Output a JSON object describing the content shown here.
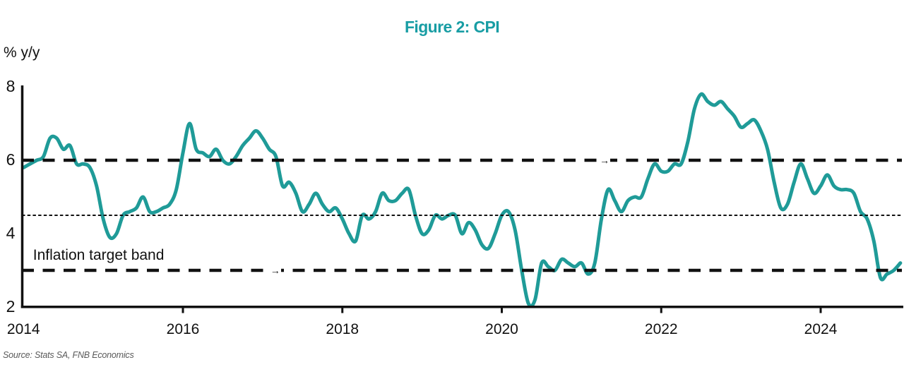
{
  "title": "Figure 2: CPI",
  "y_axis_unit_label": "% y/y",
  "annotation": "Inflation target band",
  "source_note": "Source: Stats SA, FNB Economics",
  "colors": {
    "line": "#1f9b98",
    "title": "#189da4",
    "axis": "#111111",
    "text": "#111111",
    "source_text": "#5a5a5a"
  },
  "chart_data": {
    "type": "line",
    "title": "Figure 2: CPI",
    "xlabel": "",
    "ylabel": "% y/y",
    "ylim": [
      2,
      8
    ],
    "yticks": [
      8,
      6,
      4,
      2
    ],
    "xticks": [
      2014,
      2016,
      2018,
      2020,
      2022,
      2024
    ],
    "x_range_years": [
      2014.0,
      2025.08
    ],
    "grid": false,
    "legend": false,
    "series": [
      {
        "name": "CPI",
        "unit": "% y/y",
        "frequency": "monthly",
        "start": "2014-01",
        "end": "2025-01",
        "values": [
          5.8,
          5.9,
          6.0,
          6.1,
          6.6,
          6.6,
          6.3,
          6.4,
          5.9,
          5.9,
          5.8,
          5.3,
          4.4,
          3.9,
          4.0,
          4.5,
          4.6,
          4.7,
          5.0,
          4.6,
          4.6,
          4.7,
          4.8,
          5.2,
          6.2,
          7.0,
          6.3,
          6.2,
          6.1,
          6.3,
          6.0,
          5.9,
          6.1,
          6.4,
          6.6,
          6.8,
          6.6,
          6.3,
          6.1,
          5.3,
          5.4,
          5.1,
          4.6,
          4.8,
          5.1,
          4.8,
          4.6,
          4.7,
          4.4,
          4.0,
          3.8,
          4.5,
          4.4,
          4.6,
          5.1,
          4.9,
          4.9,
          5.1,
          5.2,
          4.5,
          4.0,
          4.1,
          4.5,
          4.4,
          4.5,
          4.5,
          4.0,
          4.3,
          4.1,
          3.7,
          3.6,
          4.0,
          4.5,
          4.6,
          4.1,
          3.0,
          2.1,
          2.2,
          3.2,
          3.1,
          3.0,
          3.3,
          3.2,
          3.1,
          3.2,
          2.9,
          3.2,
          4.4,
          5.2,
          4.9,
          4.6,
          4.9,
          5.0,
          5.0,
          5.5,
          5.9,
          5.7,
          5.7,
          5.9,
          5.9,
          6.5,
          7.4,
          7.8,
          7.6,
          7.5,
          7.6,
          7.4,
          7.2,
          6.9,
          7.0,
          7.1,
          6.8,
          6.3,
          5.4,
          4.7,
          4.8,
          5.4,
          5.9,
          5.5,
          5.1,
          5.3,
          5.6,
          5.3,
          5.2,
          5.2,
          5.1,
          4.6,
          4.4,
          3.8,
          2.8,
          2.9,
          3.0,
          3.2
        ]
      }
    ],
    "reference_lines": [
      {
        "value": 6,
        "style": "dashed",
        "role": "inflation-target-band-upper"
      },
      {
        "value": 4.5,
        "style": "dotted",
        "role": "inflation-target-midpoint"
      },
      {
        "value": 3,
        "style": "dashed",
        "role": "inflation-target-band-lower"
      }
    ],
    "annotations": [
      {
        "text": "Inflation target band",
        "x_year": 2014.12,
        "y_value": 3.4
      }
    ],
    "arrow_markers": [
      {
        "on_value": 3,
        "x_year": 2017.15
      },
      {
        "on_value": 6,
        "x_year": 2021.28
      }
    ]
  }
}
